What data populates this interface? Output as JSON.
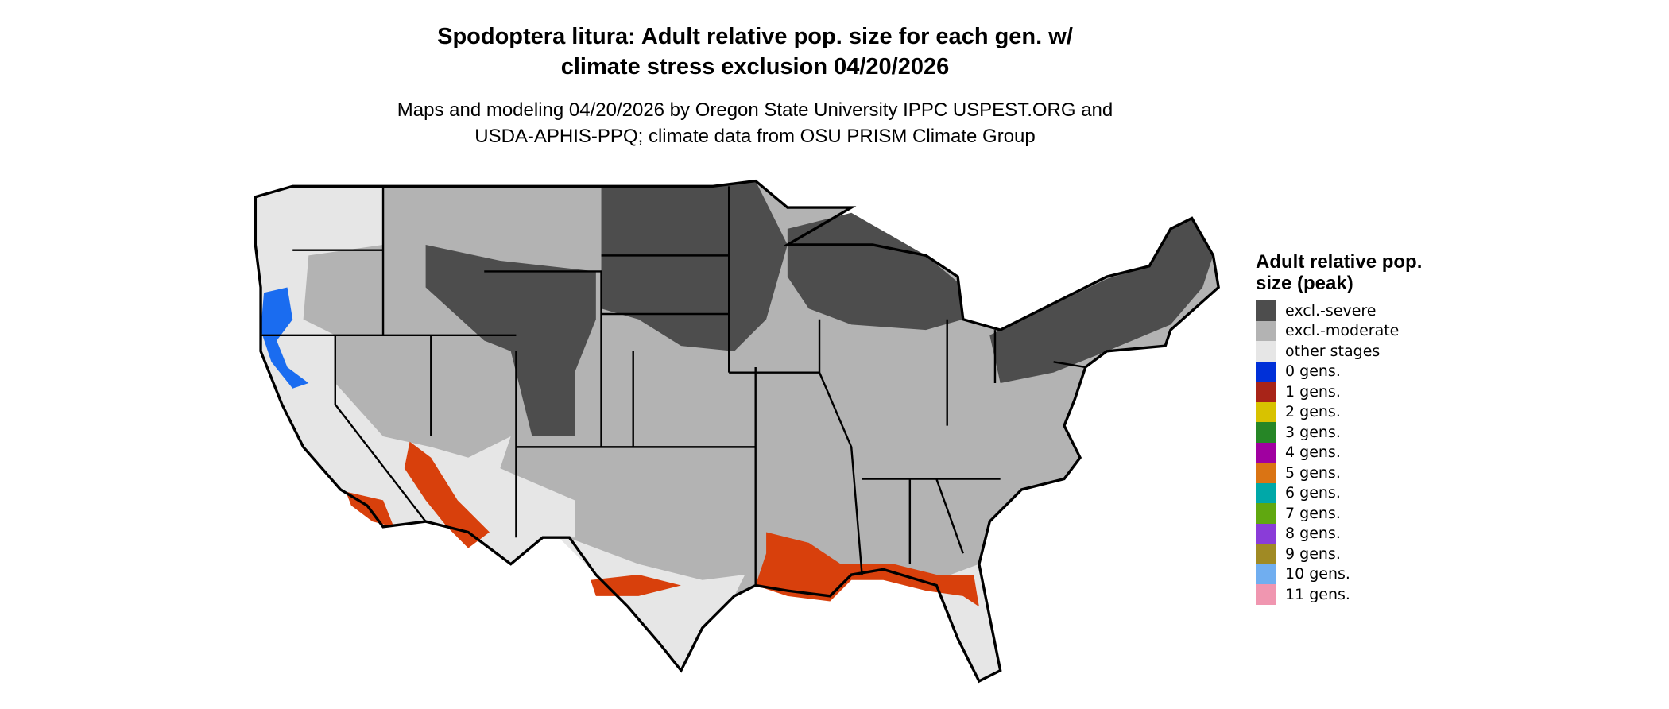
{
  "title_line1": "Spodoptera litura: Adult relative pop. size for each gen. w/",
  "title_line2": "climate stress exclusion 04/20/2026",
  "subtitle_line1": "Maps and modeling 04/20/2026 by Oregon State University IPPC USPEST.ORG and",
  "subtitle_line2": "USDA-APHIS-PPQ; climate data from OSU PRISM Climate Group",
  "legend": {
    "title": "Adult relative pop. size (peak)",
    "items": [
      {
        "label": "excl.-severe",
        "color": "#4d4d4d"
      },
      {
        "label": "excl.-moderate",
        "color": "#b3b3b3"
      },
      {
        "label": "other stages",
        "color": "#e6e6e6"
      },
      {
        "label": "0 gens.",
        "color": "#0030d8"
      },
      {
        "label": "1 gens.",
        "color": "#a82418"
      },
      {
        "label": "2 gens.",
        "color": "#d8c200"
      },
      {
        "label": "3 gens.",
        "color": "#268626"
      },
      {
        "label": "4 gens.",
        "color": "#a000a0"
      },
      {
        "label": "5 gens.",
        "color": "#da7414"
      },
      {
        "label": "6 gens.",
        "color": "#00a8a8"
      },
      {
        "label": "7 gens.",
        "color": "#60a810"
      },
      {
        "label": "8 gens.",
        "color": "#8a3cd8"
      },
      {
        "label": "9 gens.",
        "color": "#a08a24"
      },
      {
        "label": "10 gens.",
        "color": "#70aef0"
      },
      {
        "label": "11 gens.",
        "color": "#f096b0"
      }
    ]
  },
  "map_colors": {
    "outline": "#000000",
    "gulf_red": "#d8400c",
    "coast_blue": "#1a6cf0"
  }
}
